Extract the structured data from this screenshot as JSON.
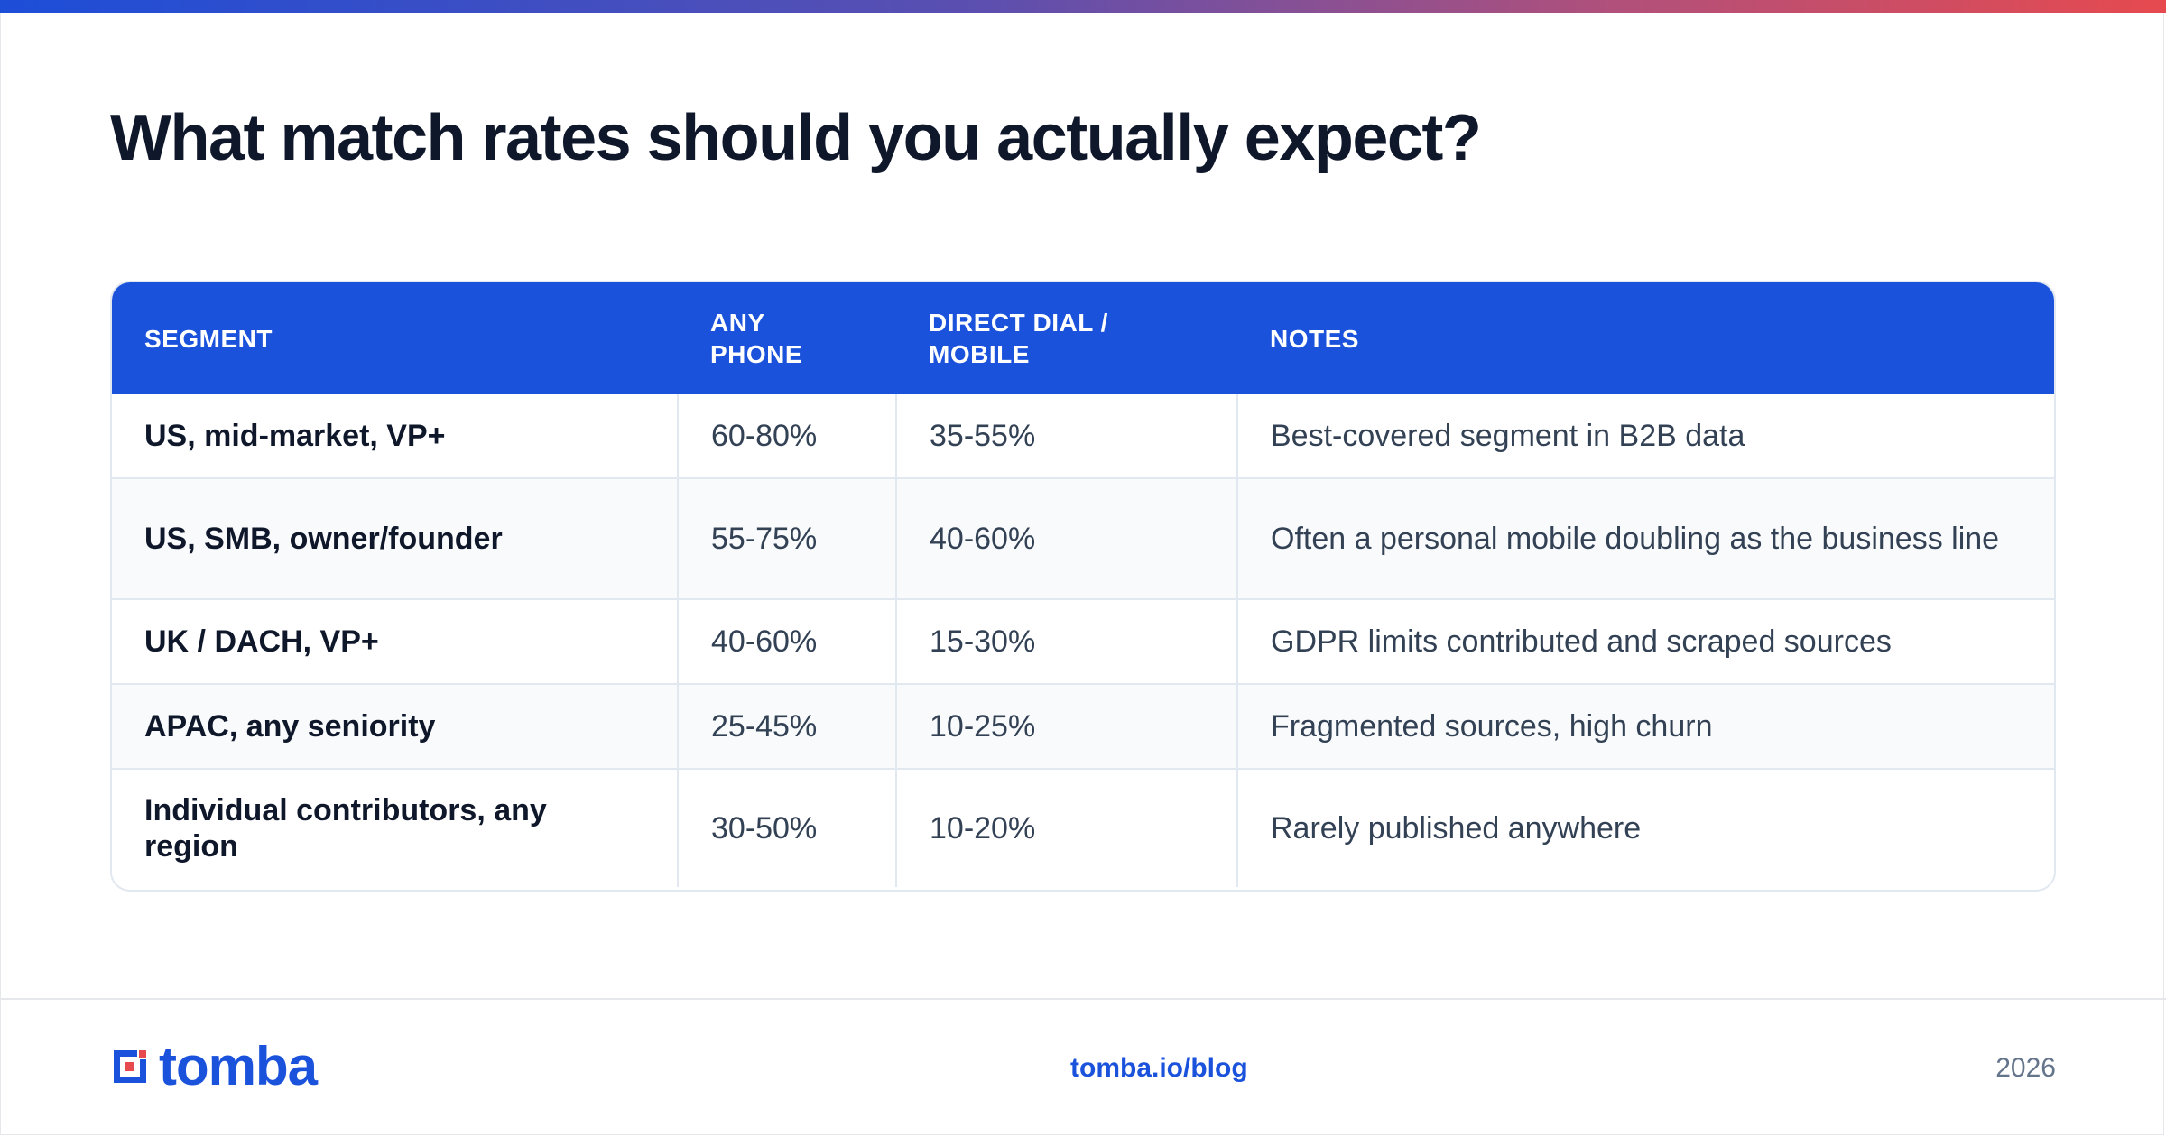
{
  "title": "What match rates should you actually expect?",
  "table": {
    "headers": [
      "SEGMENT",
      "ANY PHONE",
      "DIRECT DIAL / MOBILE",
      "NOTES"
    ],
    "rows": [
      {
        "segment": "US, mid-market, VP+",
        "any_phone": "60-80%",
        "direct_dial": "35-55%",
        "notes": "Best-covered segment in B2B data"
      },
      {
        "segment": "US, SMB, owner/founder",
        "any_phone": "55-75%",
        "direct_dial": "40-60%",
        "notes": "Often a personal mobile doubling as the business line"
      },
      {
        "segment": "UK / DACH, VP+",
        "any_phone": "40-60%",
        "direct_dial": "15-30%",
        "notes": "GDPR limits contributed and scraped sources"
      },
      {
        "segment": "APAC, any seniority",
        "any_phone": "25-45%",
        "direct_dial": "10-25%",
        "notes": "Fragmented sources, high churn"
      },
      {
        "segment": "Individual contributors, any region",
        "any_phone": "30-50%",
        "direct_dial": "10-20%",
        "notes": "Rarely published anywhere"
      }
    ]
  },
  "footer": {
    "logo_text": "tomba",
    "link": "tomba.io/blog",
    "year": "2026"
  },
  "colors": {
    "brand_blue": "#1a52dc",
    "accent_red": "#e64a4f",
    "header_bg": "#1a52dc",
    "alt_row_bg": "#f8fafc"
  },
  "icons": {
    "logo_mark": "tomba-logo-icon"
  }
}
